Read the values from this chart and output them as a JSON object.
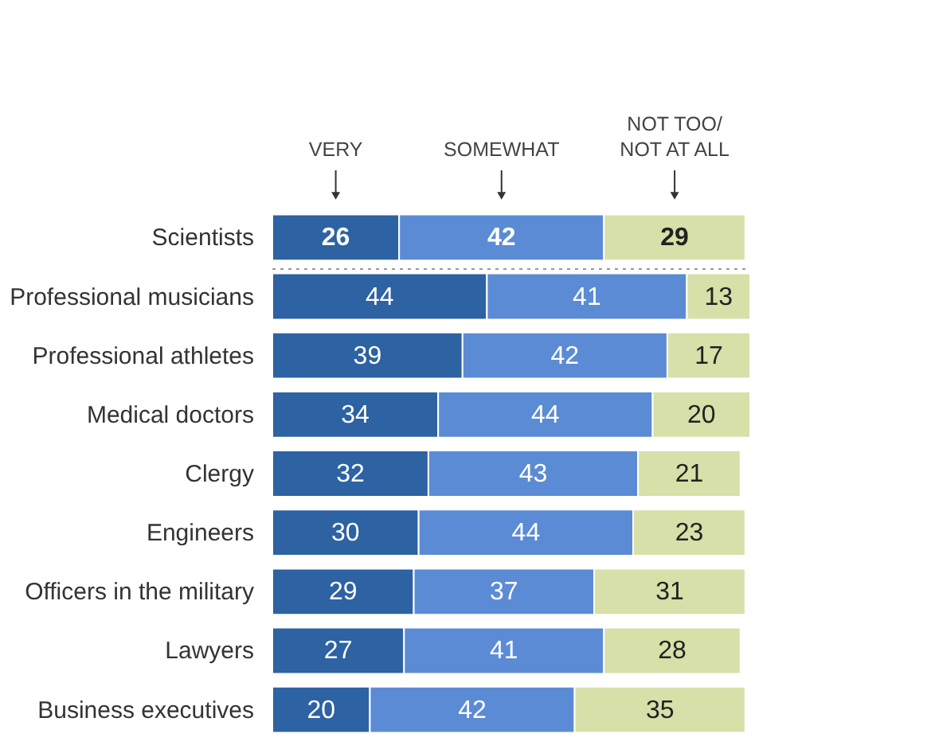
{
  "chart_data": {
    "type": "bar",
    "orientation": "horizontal",
    "stacked": true,
    "data_labels": true,
    "legend": "top",
    "categories": [
      "Scientists",
      "Professional musicians",
      "Professional athletes",
      "Medical doctors",
      "Clergy",
      "Engineers",
      "Officers in the military",
      "Lawyers",
      "Business executives"
    ],
    "series": [
      {
        "name": "VERY",
        "color": "#2d62a3",
        "values": [
          26,
          44,
          39,
          34,
          32,
          30,
          29,
          27,
          20
        ]
      },
      {
        "name": "SOMEWHAT",
        "color": "#5b8bd4",
        "values": [
          42,
          41,
          42,
          44,
          43,
          44,
          37,
          41,
          42
        ]
      },
      {
        "name": "NOT TOO/\nNOT AT ALL",
        "color": "#d6e0a8",
        "values": [
          29,
          13,
          17,
          20,
          21,
          23,
          31,
          28,
          35
        ]
      }
    ]
  }
}
